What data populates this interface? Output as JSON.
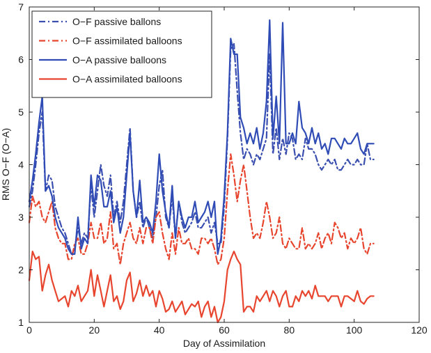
{
  "chart_data": {
    "type": "line",
    "title": "",
    "xlabel": "Day of Assimilation",
    "ylabel": "RMS O−F (O−A)",
    "xlim": [
      0,
      120
    ],
    "ylim": [
      1,
      7
    ],
    "xticks": [
      0,
      20,
      40,
      60,
      80,
      100,
      120
    ],
    "yticks": [
      1,
      2,
      3,
      4,
      5,
      6,
      7
    ],
    "x_tick_labels": [
      "0",
      "20",
      "40",
      "60",
      "80",
      "100",
      "120"
    ],
    "y_tick_labels": [
      "1",
      "2",
      "3",
      "4",
      "5",
      "6",
      "7"
    ],
    "grid": false,
    "legend_position": "top-left",
    "series": [
      {
        "name": "O−F passive ballons",
        "color": "#3a4fb0",
        "dash": "dashdot",
        "x": [
          0,
          1,
          2,
          3,
          4,
          5,
          6,
          7,
          8,
          9,
          10,
          11,
          12,
          13,
          14,
          15,
          16,
          17,
          18,
          19,
          20,
          21,
          22,
          23,
          24,
          25,
          26,
          27,
          28,
          29,
          30,
          31,
          32,
          33,
          34,
          35,
          36,
          37,
          38,
          39,
          40,
          41,
          42,
          43,
          44,
          45,
          46,
          47,
          48,
          49,
          50,
          51,
          52,
          53,
          54,
          55,
          56,
          57,
          58,
          59,
          60,
          61,
          62,
          63,
          64,
          65,
          66,
          67,
          68,
          69,
          70,
          71,
          72,
          73,
          74,
          75,
          76,
          77,
          78,
          79,
          80,
          81,
          82,
          83,
          84,
          85,
          86,
          87,
          88,
          89,
          90,
          91,
          92,
          93,
          94,
          95,
          96,
          97,
          98,
          99,
          100,
          101,
          102,
          103,
          104,
          105,
          106
        ],
        "values": [
          3.2,
          3.5,
          4.0,
          4.6,
          5.0,
          3.5,
          3.8,
          3.7,
          3.2,
          3.0,
          2.8,
          2.7,
          2.5,
          2.3,
          2.4,
          2.8,
          2.5,
          2.7,
          2.6,
          3.6,
          3.0,
          3.5,
          4.0,
          3.6,
          3.4,
          3.8,
          3.0,
          3.3,
          2.9,
          3.3,
          4.0,
          4.7,
          3.5,
          3.0,
          3.3,
          2.8,
          3.0,
          2.8,
          2.6,
          3.0,
          3.6,
          3.9,
          3.0,
          2.8,
          3.4,
          2.6,
          3.3,
          2.9,
          2.7,
          2.8,
          2.9,
          3.1,
          2.8,
          2.8,
          2.9,
          3.0,
          2.7,
          2.9,
          2.5,
          2.5,
          3.2,
          4.5,
          6.2,
          6.3,
          5.4,
          4.6,
          4.1,
          4.3,
          4.2,
          4.0,
          4.2,
          4.1,
          4.3,
          4.5,
          6.1,
          4.2,
          4.7,
          4.1,
          4.5,
          4.2,
          4.6,
          4.5,
          4.1,
          4.2,
          4.1,
          4.5,
          4.3,
          4.3,
          4.2,
          4.0,
          3.9,
          4.0,
          4.1,
          4.0,
          4.1,
          3.9,
          3.9,
          4.0,
          4.1,
          4.0,
          4.0,
          4.1,
          4.0,
          4.0,
          4.4,
          4.1,
          4.1
        ]
      },
      {
        "name": "O−F assimilated balloons",
        "color": "#e8452e",
        "dash": "dashdot",
        "x": [
          0,
          1,
          2,
          3,
          4,
          5,
          6,
          7,
          8,
          9,
          10,
          11,
          12,
          13,
          14,
          15,
          16,
          17,
          18,
          19,
          20,
          21,
          22,
          23,
          24,
          25,
          26,
          27,
          28,
          29,
          30,
          31,
          32,
          33,
          34,
          35,
          36,
          37,
          38,
          39,
          40,
          41,
          42,
          43,
          44,
          45,
          46,
          47,
          48,
          49,
          50,
          51,
          52,
          53,
          54,
          55,
          56,
          57,
          58,
          59,
          60,
          61,
          62,
          63,
          64,
          65,
          66,
          67,
          68,
          69,
          70,
          71,
          72,
          73,
          74,
          75,
          76,
          77,
          78,
          79,
          80,
          81,
          82,
          83,
          84,
          85,
          86,
          87,
          88,
          89,
          90,
          91,
          92,
          93,
          94,
          95,
          96,
          97,
          98,
          99,
          100,
          101,
          102,
          103,
          104,
          105,
          106
        ],
        "values": [
          2.9,
          3.4,
          3.2,
          3.3,
          3.0,
          2.9,
          3.1,
          3.3,
          2.8,
          2.6,
          2.5,
          2.5,
          2.2,
          2.2,
          2.5,
          2.6,
          2.3,
          2.3,
          2.5,
          2.9,
          2.6,
          2.6,
          2.9,
          2.5,
          2.6,
          3.1,
          2.4,
          2.5,
          2.1,
          2.5,
          2.7,
          2.9,
          2.6,
          2.5,
          2.8,
          2.5,
          2.8,
          2.8,
          2.5,
          3.0,
          3.1,
          2.7,
          2.4,
          2.2,
          2.7,
          2.3,
          2.8,
          2.5,
          2.5,
          2.6,
          2.4,
          2.4,
          2.3,
          2.6,
          2.6,
          2.5,
          2.6,
          2.4,
          2.1,
          2.2,
          2.6,
          3.5,
          4.2,
          3.8,
          3.3,
          3.7,
          4.0,
          3.5,
          3.0,
          2.6,
          2.7,
          2.6,
          2.9,
          3.3,
          3.0,
          2.6,
          2.7,
          3.0,
          2.5,
          2.4,
          2.6,
          2.5,
          2.4,
          2.4,
          2.8,
          2.4,
          2.5,
          2.4,
          2.5,
          2.7,
          2.4,
          2.6,
          2.7,
          2.5,
          2.9,
          2.8,
          2.6,
          2.7,
          2.4,
          2.6,
          2.5,
          2.6,
          2.8,
          2.4,
          2.3,
          2.5,
          2.5
        ]
      },
      {
        "name": "O−A passive balloons",
        "color": "#2f4bb5",
        "dash": "solid",
        "x": [
          0,
          1,
          2,
          3,
          4,
          5,
          6,
          7,
          8,
          9,
          10,
          11,
          12,
          13,
          14,
          15,
          16,
          17,
          18,
          19,
          20,
          21,
          22,
          23,
          24,
          25,
          26,
          27,
          28,
          29,
          30,
          31,
          32,
          33,
          34,
          35,
          36,
          37,
          38,
          39,
          40,
          41,
          42,
          43,
          44,
          45,
          46,
          47,
          48,
          49,
          50,
          51,
          52,
          53,
          54,
          55,
          56,
          57,
          58,
          59,
          60,
          61,
          62,
          63,
          64,
          65,
          66,
          67,
          68,
          69,
          70,
          71,
          72,
          73,
          74,
          75,
          76,
          77,
          78,
          79,
          80,
          81,
          82,
          83,
          84,
          85,
          86,
          87,
          88,
          89,
          90,
          91,
          92,
          93,
          94,
          95,
          96,
          97,
          98,
          99,
          100,
          101,
          102,
          103,
          104,
          105,
          106
        ],
        "values": [
          3.3,
          3.7,
          4.2,
          4.8,
          5.3,
          3.5,
          3.6,
          3.4,
          3.0,
          2.8,
          2.7,
          2.6,
          2.4,
          2.3,
          2.3,
          3.0,
          2.4,
          2.6,
          2.5,
          3.8,
          3.2,
          3.8,
          3.7,
          3.2,
          3.2,
          3.5,
          2.9,
          3.2,
          2.7,
          3.0,
          3.8,
          4.6,
          3.5,
          3.0,
          3.7,
          2.9,
          3.0,
          2.9,
          2.7,
          3.3,
          4.2,
          3.5,
          3.1,
          2.8,
          3.6,
          2.6,
          3.3,
          3.0,
          2.8,
          3.0,
          3.0,
          3.3,
          2.9,
          3.0,
          3.1,
          3.3,
          3.0,
          3.3,
          2.3,
          2.6,
          3.4,
          4.6,
          6.4,
          6.1,
          6.1,
          4.9,
          4.7,
          4.4,
          4.6,
          4.4,
          4.7,
          4.3,
          4.6,
          5.2,
          6.75,
          4.5,
          5.3,
          4.4,
          6.7,
          4.4,
          4.4,
          4.6,
          4.4,
          5.2,
          4.7,
          4.6,
          4.4,
          4.7,
          4.4,
          4.6,
          4.3,
          4.4,
          4.2,
          4.5,
          4.5,
          4.4,
          4.3,
          4.5,
          4.4,
          4.4,
          4.5,
          4.6,
          4.3,
          4.2,
          4.4,
          4.4,
          4.4
        ]
      },
      {
        "name": "O−A assimilated balloons",
        "color": "#e8452e",
        "dash": "solid",
        "x": [
          0,
          1,
          2,
          3,
          4,
          5,
          6,
          7,
          8,
          9,
          10,
          11,
          12,
          13,
          14,
          15,
          16,
          17,
          18,
          19,
          20,
          21,
          22,
          23,
          24,
          25,
          26,
          27,
          28,
          29,
          30,
          31,
          32,
          33,
          34,
          35,
          36,
          37,
          38,
          39,
          40,
          41,
          42,
          43,
          44,
          45,
          46,
          47,
          48,
          49,
          50,
          51,
          52,
          53,
          54,
          55,
          56,
          57,
          58,
          59,
          60,
          61,
          62,
          63,
          64,
          65,
          66,
          67,
          68,
          69,
          70,
          71,
          72,
          73,
          74,
          75,
          76,
          77,
          78,
          79,
          80,
          81,
          82,
          83,
          84,
          85,
          86,
          87,
          88,
          89,
          90,
          91,
          92,
          93,
          94,
          95,
          96,
          97,
          98,
          99,
          100,
          101,
          102,
          103,
          104,
          105,
          106
        ],
        "values": [
          1.8,
          2.35,
          2.2,
          2.25,
          1.6,
          1.9,
          2.1,
          1.8,
          1.6,
          1.4,
          1.45,
          1.5,
          1.3,
          1.6,
          1.5,
          1.7,
          1.4,
          1.5,
          1.6,
          2.0,
          1.5,
          1.9,
          1.6,
          1.3,
          1.6,
          1.9,
          1.4,
          1.5,
          1.25,
          1.4,
          1.8,
          1.95,
          1.4,
          1.55,
          1.8,
          1.5,
          1.7,
          1.5,
          1.6,
          1.3,
          1.6,
          1.45,
          1.2,
          1.25,
          1.4,
          1.2,
          1.3,
          1.4,
          1.15,
          1.25,
          1.35,
          1.3,
          1.4,
          1.1,
          1.3,
          1.4,
          1.1,
          1.3,
          1.0,
          1.1,
          1.4,
          2.0,
          2.2,
          2.35,
          2.2,
          2.1,
          1.2,
          1.3,
          1.3,
          1.2,
          1.5,
          1.4,
          1.5,
          1.6,
          1.4,
          1.6,
          1.5,
          1.3,
          1.5,
          1.6,
          1.3,
          1.3,
          1.5,
          1.4,
          1.6,
          1.5,
          1.6,
          1.45,
          1.7,
          1.5,
          1.5,
          1.5,
          1.4,
          1.5,
          1.5,
          1.5,
          1.3,
          1.5,
          1.5,
          1.45,
          1.4,
          1.6,
          1.4,
          1.35,
          1.45,
          1.5,
          1.5
        ]
      }
    ]
  }
}
